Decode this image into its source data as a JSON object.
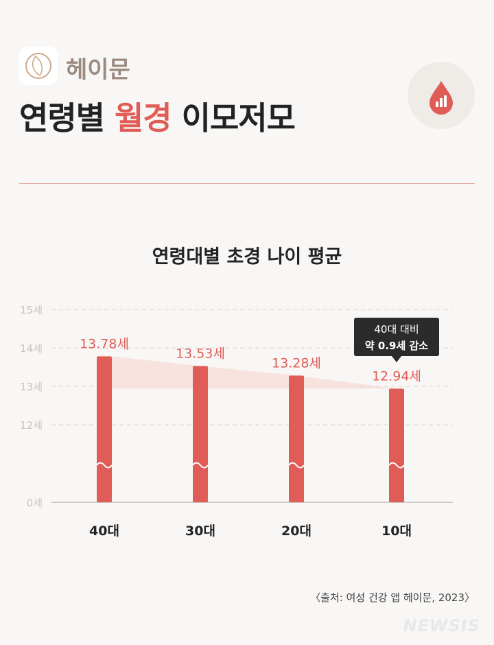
{
  "header": {
    "brand": "헤이문",
    "title_part1": "연령별 ",
    "title_highlight": "월경",
    "title_part2": " 이모저모",
    "badge_icon": "blood-drop-chart-icon",
    "logo_icon": "heymoon-logo-icon"
  },
  "chart_data": {
    "type": "bar",
    "title": "연령대별 초경 나이 평균",
    "categories": [
      "40대",
      "30대",
      "20대",
      "10대"
    ],
    "values": [
      13.78,
      13.53,
      13.28,
      12.94
    ],
    "value_labels": [
      "13.78세",
      "13.53세",
      "13.28세",
      "12.94세"
    ],
    "y_ticks": [
      "15세",
      "14세",
      "13세",
      "12세",
      "0세"
    ],
    "y_tick_values": [
      15,
      14,
      13,
      12,
      0
    ],
    "axis_break": true,
    "grid": "dashed horizontal",
    "annotation": {
      "line1": "40대 대비",
      "line2": "약 0.9세 감소"
    },
    "bar_color": "#e05c57"
  },
  "footer": {
    "source": "〈출처: 여성 건강 앱 헤이문, 2023〉",
    "watermark": "NEWSIS"
  }
}
